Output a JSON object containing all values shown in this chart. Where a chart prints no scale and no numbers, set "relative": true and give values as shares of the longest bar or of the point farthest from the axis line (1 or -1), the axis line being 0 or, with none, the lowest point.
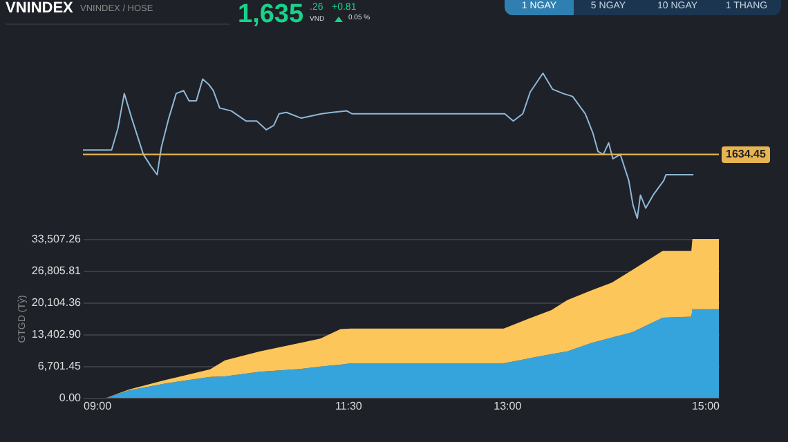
{
  "chart_data": [
    {
      "type": "other",
      "title": "VNINDEX",
      "subtitle": "VNINDEX / HOSE",
      "annotations": [
        "1,635",
        ".26",
        "VND",
        "+0.81",
        "0.05 %",
        "1 NGAY",
        "5 NGAY",
        "10 NGAY",
        "1 THANG"
      ]
    },
    {
      "type": "line",
      "relative": true,
      "xlim": [
        9,
        15
      ],
      "annotations": [
        "1634.45"
      ],
      "x": [
        9.0,
        9.27,
        9.33,
        9.39,
        9.46,
        9.57,
        9.64,
        9.7,
        9.74,
        9.81,
        9.88,
        9.95,
        10.0,
        10.07,
        10.13,
        10.19,
        10.23,
        10.29,
        10.4,
        10.54,
        10.64,
        10.73,
        10.8,
        10.85,
        10.92,
        11.06,
        11.25,
        11.35,
        11.49,
        11.54,
        12.98,
        13.06,
        13.15,
        13.22,
        13.34,
        13.43,
        13.53,
        13.62,
        13.74,
        13.81,
        13.86,
        13.91,
        13.96,
        14.0,
        14.07,
        14.15,
        14.19,
        14.23,
        14.26,
        14.31,
        14.38,
        14.48,
        14.5,
        14.76
      ],
      "series": [
        {
          "color": "#8fb8d6",
          "values": [
            0.47,
            0.47,
            0.62,
            0.86,
            0.69,
            0.44,
            0.36,
            0.3,
            0.49,
            0.69,
            0.86,
            0.88,
            0.81,
            0.81,
            0.96,
            0.92,
            0.88,
            0.76,
            0.74,
            0.67,
            0.67,
            0.61,
            0.64,
            0.72,
            0.73,
            0.69,
            0.72,
            0.73,
            0.74,
            0.72,
            0.72,
            0.67,
            0.72,
            0.87,
            1,
            0.89,
            0.86,
            0.84,
            0.72,
            0.59,
            0.46,
            0.44,
            0.52,
            0.41,
            0.44,
            0.26,
            0.09,
            0,
            0.16,
            0.07,
            0.16,
            0.26,
            0.3,
            0.3
          ]
        }
      ],
      "ref_lines": [
        {
          "axis": "y",
          "value": 0.44,
          "color": "#e6b450"
        }
      ]
    },
    {
      "type": "area",
      "stacked": true,
      "ylabel": "GTGD (Tỷ)",
      "grid": "y",
      "xlim": [
        9,
        15
      ],
      "ylim": [
        0,
        33507.26
      ],
      "xticks": [
        {
          "value": 9,
          "label": "09:00"
        },
        {
          "value": 11.5,
          "label": "11:30"
        },
        {
          "value": 13,
          "label": "13:00"
        },
        {
          "value": 15,
          "label": "15:00"
        }
      ],
      "yticks": [
        {
          "value": 0,
          "label": "0.00"
        },
        {
          "value": 6701.45,
          "label": "6,701.45"
        },
        {
          "value": 13402.9,
          "label": "13,402.90"
        },
        {
          "value": 20104.36,
          "label": "20,104.36"
        },
        {
          "value": 26805.81,
          "label": "26,805.81"
        },
        {
          "value": 33507.26,
          "label": "33,507.26"
        }
      ],
      "x": [
        9,
        9.22,
        9.44,
        9.77,
        10.2,
        10.34,
        10.67,
        11.05,
        11.24,
        11.43,
        11.53,
        12.97,
        13.23,
        13.42,
        13.57,
        13.8,
        13.99,
        14.18,
        14.47,
        14.74,
        14.75,
        15
      ],
      "series": [
        {
          "color": "#35a4dd",
          "values": [
            0,
            0,
            1600,
            3000,
            4400,
            4500,
            5500,
            6100,
            6600,
            7000,
            7300,
            7300,
            8400,
            9200,
            9800,
            11600,
            12700,
            13800,
            16900,
            17100,
            18700,
            18700
          ]
        },
        {
          "color": "#fdc65a",
          "values": [
            0,
            0,
            200,
            700,
            1600,
            3400,
            4300,
            5500,
            5900,
            7500,
            7300,
            7300,
            8500,
            9300,
            10800,
            11100,
            11600,
            13100,
            14100,
            13900,
            14800,
            14800
          ]
        }
      ]
    }
  ]
}
